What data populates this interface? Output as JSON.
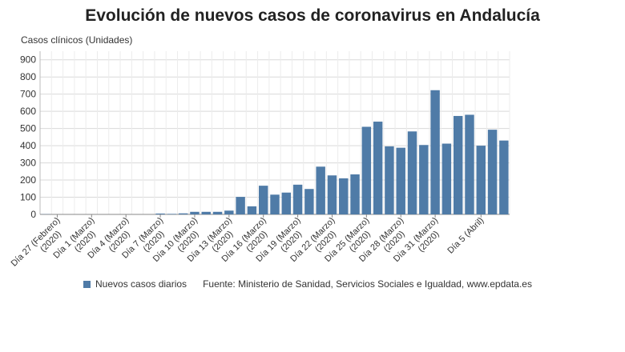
{
  "chart_data": {
    "type": "bar",
    "title": "Evolución de nuevos casos de coronavirus en Andalucía",
    "ylabel": "Casos clínicos (Unidades)",
    "xlabel": "",
    "ylim": [
      0,
      950
    ],
    "yticks": [
      0,
      100,
      200,
      300,
      400,
      500,
      600,
      700,
      800,
      900
    ],
    "grid": true,
    "legend": "bottom-left",
    "color": "#4f7ba7",
    "series": [
      {
        "name": "Nuevos casos diarios",
        "values": [
          1,
          0,
          0,
          0,
          0,
          0,
          0,
          0,
          0,
          0,
          5,
          3,
          6,
          15,
          15,
          15,
          22,
          102,
          47,
          167,
          115,
          127,
          173,
          148,
          278,
          227,
          210,
          233,
          510,
          540,
          396,
          388,
          483,
          404,
          723,
          412,
          573,
          580,
          400,
          493,
          430
        ]
      }
    ],
    "x_tick_labels": [
      {
        "index": 1,
        "lines": [
          "Día 27 (Febrero)",
          "(2020)"
        ]
      },
      {
        "index": 4,
        "lines": [
          "Día 1 (Marzo)",
          "(2020)"
        ]
      },
      {
        "index": 7,
        "lines": [
          "Día 4 (Marzo)",
          "(2020)"
        ]
      },
      {
        "index": 10,
        "lines": [
          "Día 7 (Marzo)",
          "(2020)"
        ]
      },
      {
        "index": 13,
        "lines": [
          "Día 10 (Marzo)",
          "(2020)"
        ]
      },
      {
        "index": 16,
        "lines": [
          "Día 13 (Marzo)",
          "(2020)"
        ]
      },
      {
        "index": 19,
        "lines": [
          "Día 16 (Marzo)",
          "(2020)"
        ]
      },
      {
        "index": 22,
        "lines": [
          "Día 19 (Marzo)",
          "(2020)"
        ]
      },
      {
        "index": 25,
        "lines": [
          "Día 22 (Marzo)",
          "(2020)"
        ]
      },
      {
        "index": 28,
        "lines": [
          "Día 25 (Marzo)",
          "(2020)"
        ]
      },
      {
        "index": 31,
        "lines": [
          "Día 28 (Marzo)",
          "(2020)"
        ]
      },
      {
        "index": 34,
        "lines": [
          "Día 31 (Marzo)",
          "(2020)"
        ]
      },
      {
        "index": 38,
        "lines": [
          "Día 5 (Abril)"
        ]
      }
    ],
    "source": "Fuente: Ministerio de Sanidad, Servicios Sociales e Igualdad, www.epdata.es"
  }
}
